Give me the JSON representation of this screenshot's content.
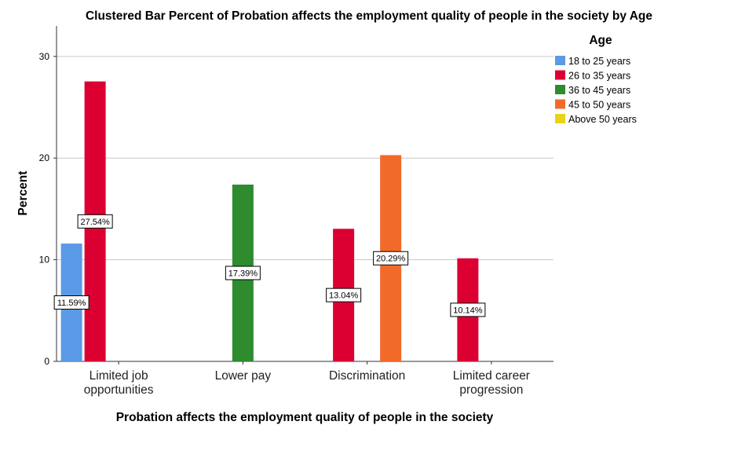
{
  "chart_data": {
    "type": "bar",
    "title": "Clustered Bar Percent of Probation affects the employment quality of people in the society by Age",
    "xlabel": "Probation affects the employment quality of people in the society",
    "ylabel": "Percent",
    "ylim": [
      0,
      33
    ],
    "yticks": [
      0,
      10,
      20,
      30
    ],
    "grid": true,
    "legend_title": "Age",
    "legend_position": "top-right",
    "categories": [
      [
        "Limited job",
        "opportunities"
      ],
      [
        "Lower pay"
      ],
      [
        "Discrimination"
      ],
      [
        "Limited career",
        "progression"
      ]
    ],
    "series": [
      {
        "name": "18 to 25 years",
        "color": "#5a9ae6",
        "values": [
          11.59,
          null,
          null,
          null
        ]
      },
      {
        "name": "26 to 35 years",
        "color": "#dc0032",
        "values": [
          27.54,
          null,
          13.04,
          10.14
        ]
      },
      {
        "name": "36 to 45 years",
        "color": "#2e8b2e",
        "values": [
          null,
          17.39,
          null,
          null
        ]
      },
      {
        "name": "45 to 50 years",
        "color": "#f26a2a",
        "values": [
          null,
          null,
          20.29,
          null
        ]
      },
      {
        "name": "Above 50 years",
        "color": "#e8d21a",
        "values": [
          null,
          null,
          null,
          null
        ]
      }
    ],
    "data_labels": [
      {
        "text": "11.59%"
      },
      {
        "text": "27.54%"
      },
      {
        "text": "17.39%"
      },
      {
        "text": "13.04%"
      },
      {
        "text": "20.29%"
      },
      {
        "text": "10.14%"
      }
    ]
  }
}
